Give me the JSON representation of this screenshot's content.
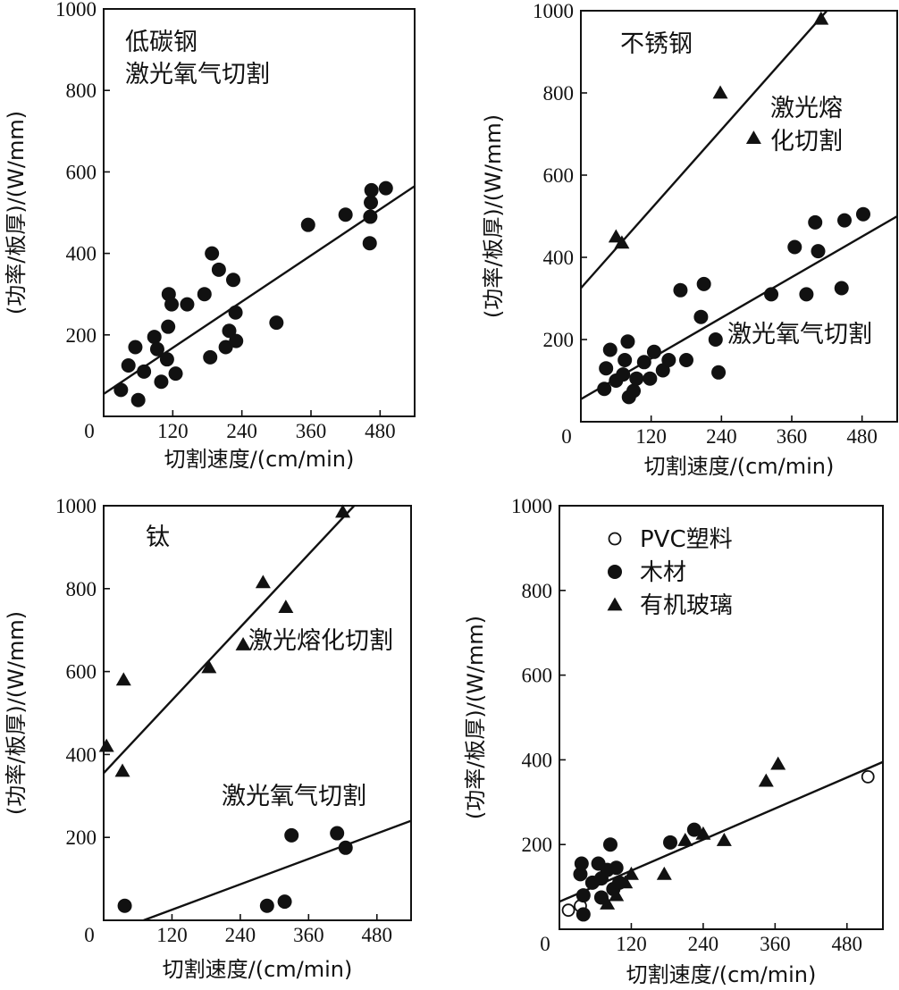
{
  "chart_data": [
    {
      "type": "scatter",
      "title": "",
      "xlabel": "切割速度/(cm/min)",
      "ylabel": "(功率/板厚)/(W/mm)",
      "xlim": [
        0,
        540
      ],
      "ylim": [
        0,
        1000
      ],
      "xticks": [
        "0",
        "120",
        "240",
        "360",
        "480"
      ],
      "yticks": [
        "200",
        "400",
        "600",
        "800",
        "1000"
      ],
      "annotations": [
        "低碳钢",
        "激光氧气切割"
      ],
      "series": [
        {
          "marker": "circle-filled",
          "x": [
            30,
            43,
            55,
            60,
            70,
            88,
            93,
            100,
            110,
            112,
            113,
            118,
            125,
            145,
            175,
            185,
            188,
            200,
            212,
            218,
            225,
            229,
            230,
            300,
            355,
            420,
            462,
            463,
            464,
            465,
            490
          ],
          "y": [
            65,
            125,
            170,
            40,
            110,
            195,
            165,
            85,
            140,
            220,
            300,
            275,
            105,
            275,
            300,
            145,
            400,
            360,
            170,
            210,
            335,
            255,
            185,
            230,
            470,
            495,
            425,
            490,
            525,
            555,
            560
          ]
        }
      ],
      "lines": [
        {
          "x": [
            0,
            540
          ],
          "y": [
            55,
            565
          ]
        }
      ]
    },
    {
      "type": "scatter",
      "title": "",
      "xlabel": "切割速度/(cm/min)",
      "ylabel": "(功率/板厚)/(W/mm)",
      "xlim": [
        0,
        540
      ],
      "ylim": [
        0,
        1000
      ],
      "xticks": [
        "0",
        "120",
        "240",
        "360",
        "480"
      ],
      "yticks": [
        "200",
        "400",
        "600",
        "800",
        "1000"
      ],
      "annotations": [
        "不锈钢",
        "激光熔",
        "化切割",
        "激光氧气切割"
      ],
      "series": [
        {
          "marker": "triangle-filled",
          "x": [
            60,
            70,
            238,
            295,
            410
          ],
          "y": [
            450,
            435,
            800,
            690,
            980
          ]
        },
        {
          "marker": "circle-filled",
          "x": [
            40,
            43,
            50,
            60,
            72,
            75,
            80,
            82,
            90,
            95,
            108,
            118,
            125,
            140,
            150,
            170,
            180,
            205,
            210,
            230,
            235,
            325,
            365,
            385,
            400,
            405,
            445,
            450,
            482
          ],
          "y": [
            80,
            130,
            175,
            100,
            115,
            150,
            195,
            60,
            75,
            105,
            145,
            105,
            170,
            125,
            150,
            320,
            150,
            255,
            335,
            200,
            120,
            310,
            425,
            310,
            485,
            415,
            325,
            490,
            505
          ]
        }
      ],
      "lines": [
        {
          "x": [
            0,
            420
          ],
          "y": [
            325,
            1000
          ]
        },
        {
          "x": [
            0,
            540
          ],
          "y": [
            55,
            500
          ]
        }
      ]
    },
    {
      "type": "scatter",
      "title": "",
      "xlabel": "切割速度/(cm/min)",
      "ylabel": "(功率/板厚)/(W/mm)",
      "xlim": [
        0,
        540
      ],
      "ylim": [
        0,
        1000
      ],
      "xticks": [
        "0",
        "120",
        "240",
        "360",
        "480"
      ],
      "yticks": [
        "200",
        "400",
        "600",
        "800",
        "1000"
      ],
      "annotations": [
        "钛",
        "激光熔化切割",
        "激光氧气切割"
      ],
      "series": [
        {
          "marker": "triangle-filled",
          "x": [
            5,
            33,
            35,
            185,
            245,
            280,
            320,
            420
          ],
          "y": [
            420,
            360,
            580,
            610,
            665,
            815,
            755,
            985
          ]
        },
        {
          "marker": "circle-filled",
          "x": [
            37,
            287,
            318,
            330,
            410,
            425
          ],
          "y": [
            35,
            35,
            45,
            205,
            210,
            175
          ]
        }
      ],
      "lines": [
        {
          "x": [
            0,
            440
          ],
          "y": [
            355,
            1000
          ]
        },
        {
          "x": [
            70,
            540
          ],
          "y": [
            0,
            240
          ]
        }
      ]
    },
    {
      "type": "scatter",
      "title": "",
      "xlabel": "切割速度/(cm/min)",
      "ylabel": "(功率/板厚)/(W/mm)",
      "xlim": [
        0,
        540
      ],
      "ylim": [
        0,
        1000
      ],
      "xticks": [
        "0",
        "120",
        "240",
        "360",
        "480"
      ],
      "yticks": [
        "200",
        "400",
        "600",
        "800",
        "1000"
      ],
      "annotations": [],
      "legend": [
        "PVC塑料",
        "木材",
        "有机玻璃"
      ],
      "series": [
        {
          "name": "PVC塑料",
          "marker": "circle-open",
          "x": [
            15,
            35,
            515
          ],
          "y": [
            45,
            55,
            360
          ]
        },
        {
          "name": "木材",
          "marker": "circle-filled",
          "x": [
            35,
            37,
            40,
            40,
            55,
            65,
            70,
            70,
            80,
            85,
            90,
            95,
            100,
            185,
            225
          ],
          "y": [
            130,
            155,
            80,
            35,
            110,
            155,
            75,
            120,
            140,
            200,
            95,
            145,
            110,
            205,
            235
          ]
        },
        {
          "name": "有机玻璃",
          "marker": "triangle-filled",
          "x": [
            80,
            95,
            110,
            120,
            175,
            210,
            240,
            275,
            345,
            365
          ],
          "y": [
            60,
            80,
            110,
            130,
            130,
            210,
            225,
            210,
            350,
            390
          ]
        }
      ],
      "lines": [
        {
          "x": [
            0,
            540
          ],
          "y": [
            65,
            395
          ]
        }
      ],
      "legend_position": "top-left"
    }
  ]
}
